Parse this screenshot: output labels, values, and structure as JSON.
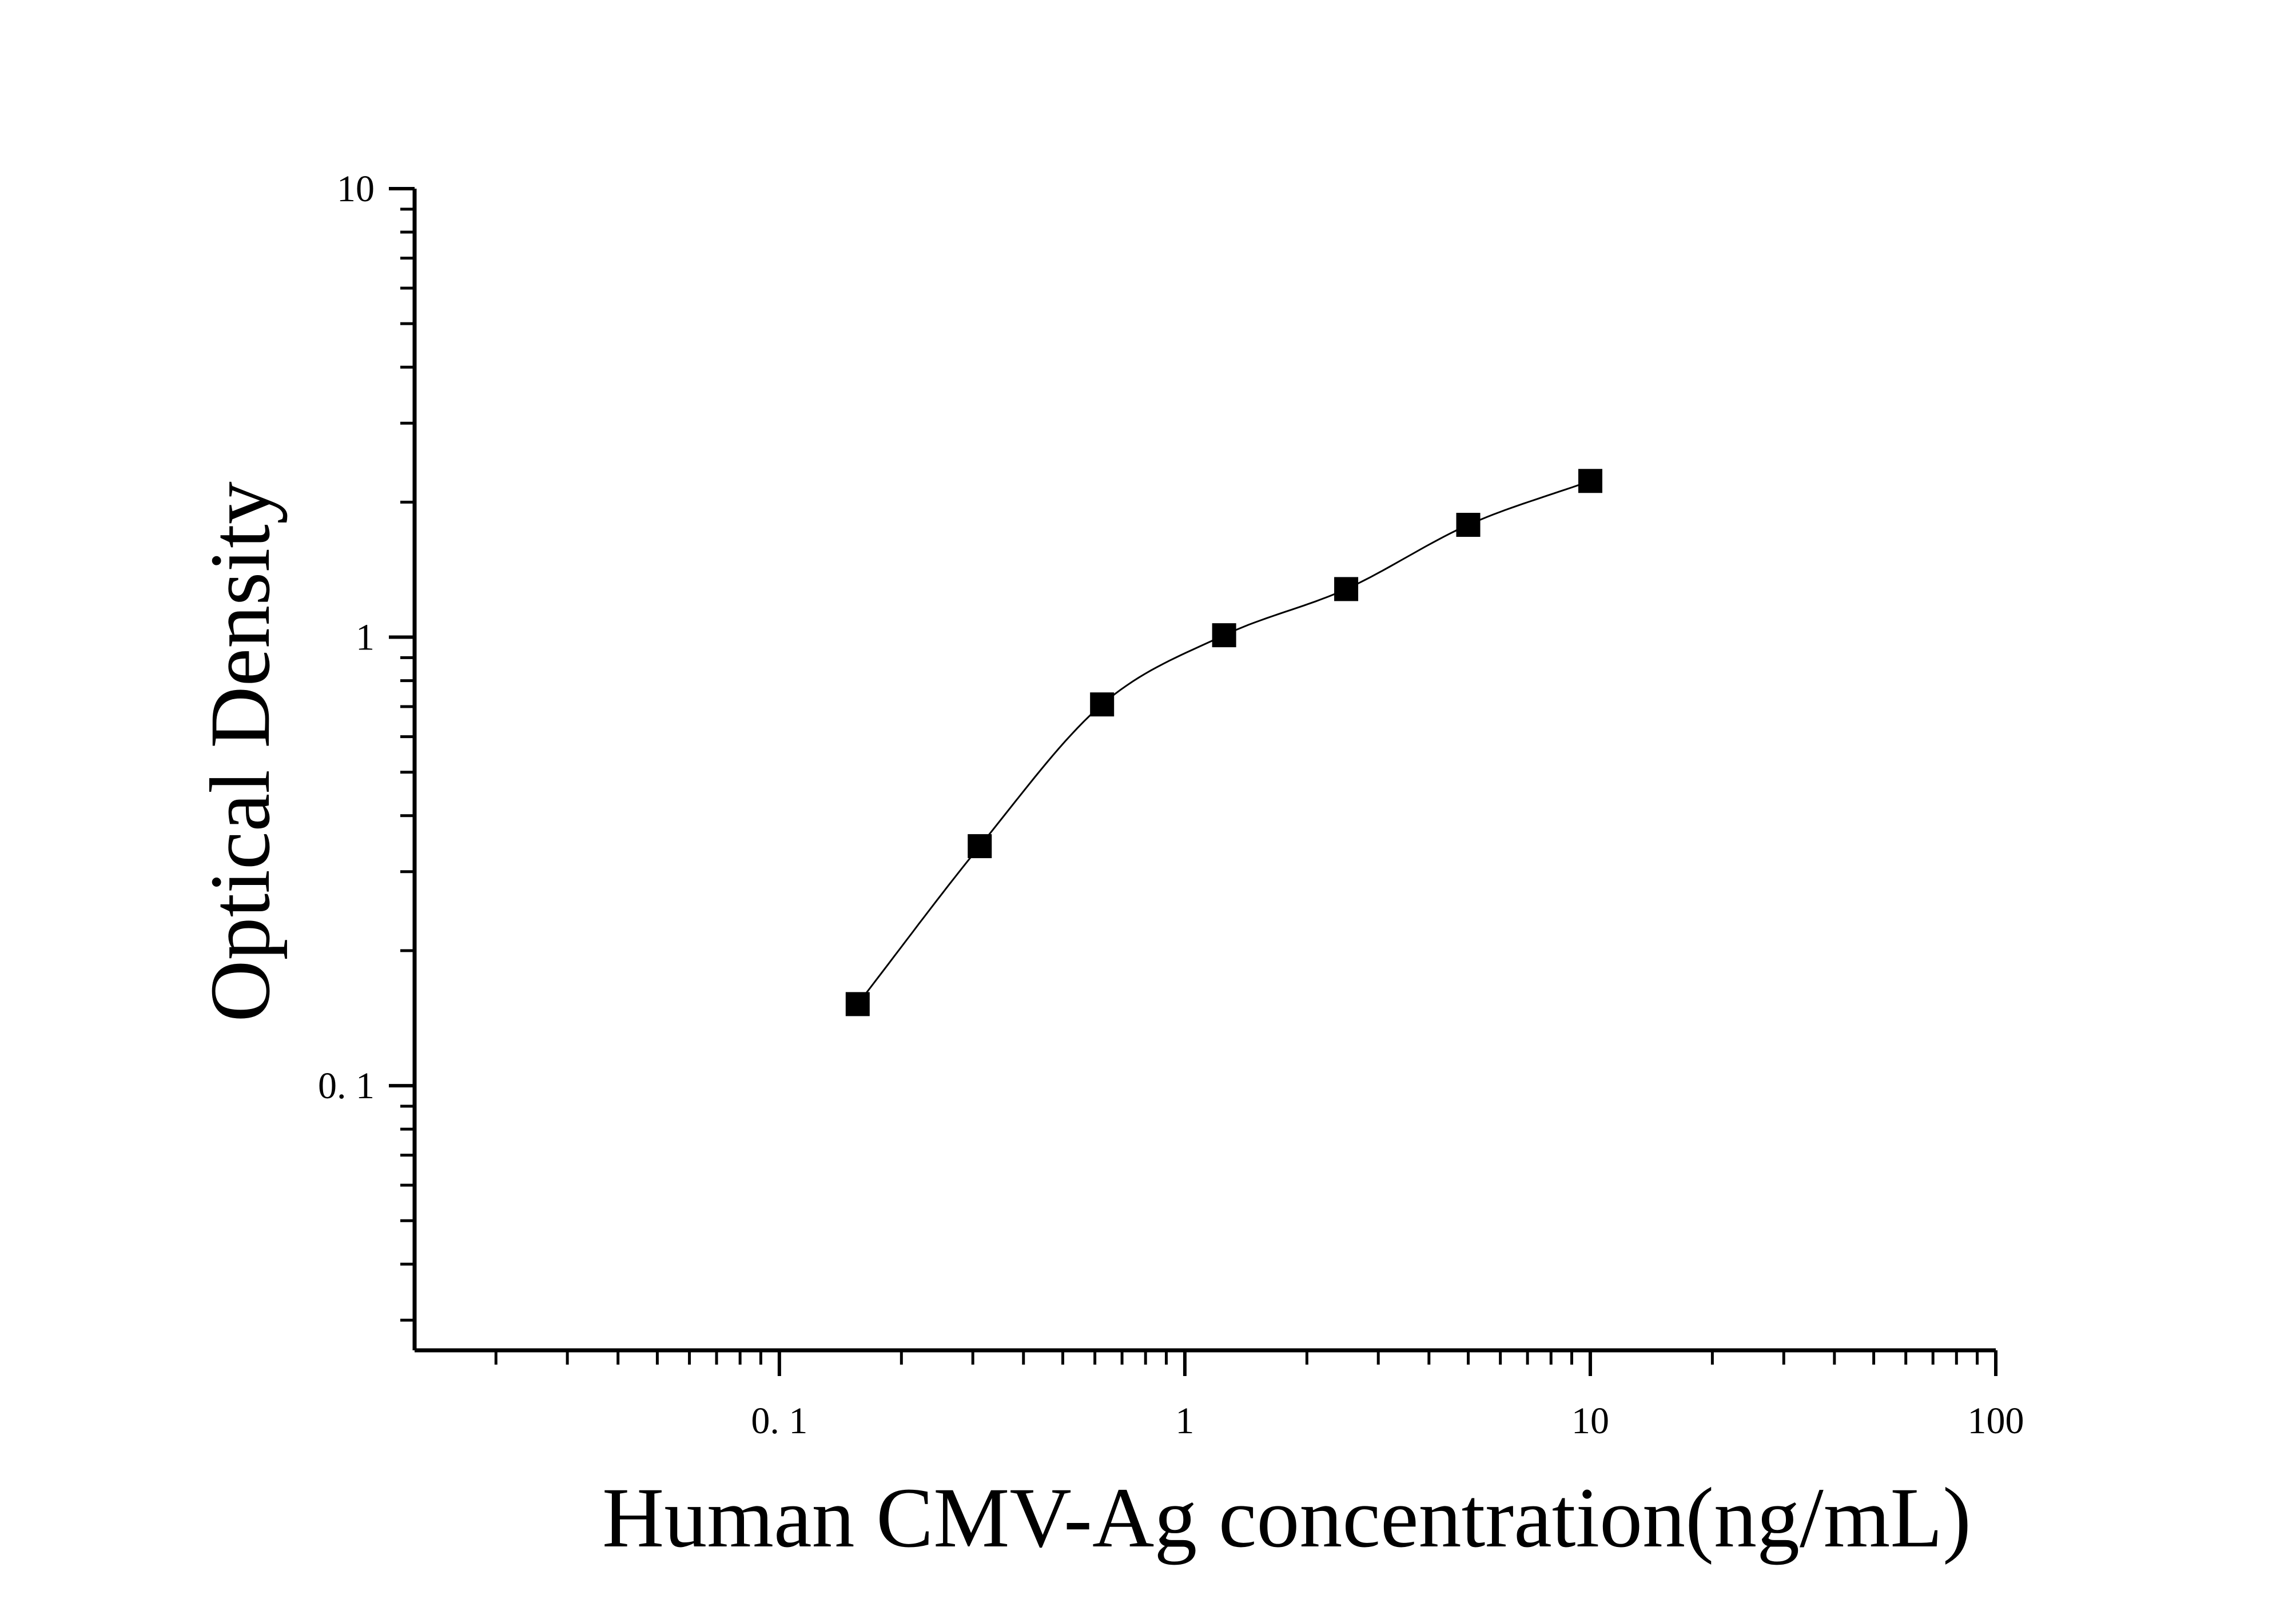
{
  "chart_data": {
    "type": "scatter",
    "xlabel": "Human CMV-Ag concentration(ng/mL)",
    "ylabel": "Optical Density",
    "xscale": "log",
    "yscale": "log",
    "xlim": [
      0.0126,
      100
    ],
    "ylim": [
      0.0257,
      10
    ],
    "x_ticks": [
      {
        "value": 0.1,
        "label": "0. 1"
      },
      {
        "value": 1,
        "label": "1"
      },
      {
        "value": 10,
        "label": "10"
      },
      {
        "value": 100,
        "label": "100"
      }
    ],
    "y_ticks": [
      {
        "value": 0.1,
        "label": "0. 1"
      },
      {
        "value": 1,
        "label": "1"
      },
      {
        "value": 10,
        "label": "10"
      }
    ],
    "grid": false,
    "legend": "none",
    "marker": "square",
    "color": "#000000",
    "x": [
      0.156,
      0.312,
      0.625,
      1.25,
      2.5,
      5,
      10
    ],
    "y": [
      0.152,
      0.342,
      0.708,
      1.01,
      1.28,
      1.78,
      2.23
    ],
    "fit_curve": "smooth fitted curve through the standard points"
  }
}
